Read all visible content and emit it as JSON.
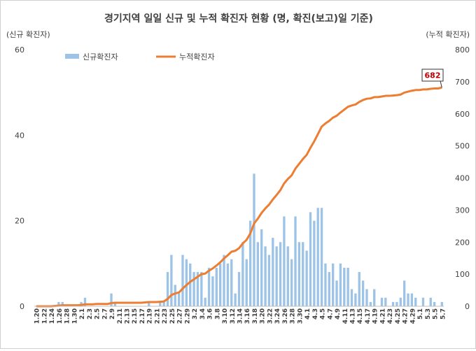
{
  "chart_data": {
    "type": "bar+line",
    "title": "경기지역 일일 신규 및 누적 확진자 현황 (명, 확진(보고)일 기준)",
    "ylabel_left": "(신규 확진자)",
    "ylabel_right": "(누적 확진자)",
    "ylim_left": [
      0,
      60
    ],
    "ylim_right": [
      0,
      800
    ],
    "yticks_left": [
      0,
      20,
      40,
      60
    ],
    "yticks_right": [
      0,
      100,
      200,
      300,
      400,
      500,
      600,
      700,
      800
    ],
    "grid": false,
    "legend_position": "top-left",
    "x": [
      "1.20",
      "1.21",
      "1.22",
      "1.23",
      "1.24",
      "1.25",
      "1.26",
      "1.27",
      "1.28",
      "1.29",
      "1.30",
      "1.31",
      "2.1",
      "2.2",
      "2.3",
      "2.4",
      "2.5",
      "2.6",
      "2.7",
      "2.8",
      "2.9",
      "2.10",
      "2.11",
      "2.12",
      "2.13",
      "2.14",
      "2.15",
      "2.16",
      "2.17",
      "2.18",
      "2.19",
      "2.20",
      "2.21",
      "2.22",
      "2.23",
      "2.24",
      "2.25",
      "2.26",
      "2.27",
      "2.28",
      "2.29",
      "3.1",
      "3.2",
      "3.3",
      "3.4",
      "3.5",
      "3.6",
      "3.7",
      "3.8",
      "3.9",
      "3.10",
      "3.11",
      "3.12",
      "3.13",
      "3.14",
      "3.15",
      "3.16",
      "3.17",
      "3.18",
      "3.19",
      "3.20",
      "3.21",
      "3.22",
      "3.23",
      "3.24",
      "3.25",
      "3.26",
      "3.27",
      "3.28",
      "3.29",
      "3.30",
      "3.31",
      "4.1",
      "4.2",
      "4.3",
      "4.4",
      "4.5",
      "4.6",
      "4.7",
      "4.8",
      "4.9",
      "4.10",
      "4.11",
      "4.12",
      "4.13",
      "4.14",
      "4.15",
      "4.16",
      "4.17",
      "4.18",
      "4.19",
      "4.20",
      "4.21",
      "4.22",
      "4.23",
      "4.24",
      "4.25",
      "4.26",
      "4.27",
      "4.28",
      "4.29",
      "4.30",
      "5.1",
      "5.2",
      "5.3",
      "5.4",
      "5.5",
      "5.6",
      "5.7"
    ],
    "xtick_labels": [
      "1.20",
      "1.22",
      "1.24",
      "1.26",
      "1.28",
      "1.30",
      "2.1",
      "2.3",
      "2.5",
      "2.7",
      "2.9",
      "2.11",
      "2.13",
      "2.15",
      "2.17",
      "2.19",
      "2.21",
      "2.23",
      "2.25",
      "2.27",
      "2.29",
      "3.2",
      "3.4",
      "3.6",
      "3.8",
      "3.10",
      "3.12",
      "3.14",
      "3.16",
      "3.18",
      "3.20",
      "3.22",
      "3.24",
      "3.26",
      "3.28",
      "3.30",
      "4.1",
      "4.3",
      "4.5",
      "4.7",
      "4.9",
      "4.11",
      "4.13",
      "4.15",
      "4.17",
      "4.19",
      "4.21",
      "4.23",
      "4.25",
      "4.27",
      "4.29",
      "5.1",
      "5.3",
      "5.5",
      "5.7"
    ],
    "series": [
      {
        "name": "신규확진자",
        "axis": "left",
        "type": "bar",
        "color": "#9dc3e6",
        "values": [
          0,
          0,
          0,
          0,
          0,
          0,
          1,
          1,
          0,
          0,
          0,
          0,
          1,
          2,
          0,
          0,
          0,
          0,
          0,
          0,
          3,
          1,
          0,
          0,
          0,
          0,
          0,
          0,
          0,
          0,
          1,
          0,
          0,
          1,
          1,
          8,
          12,
          5,
          3,
          12,
          11,
          10,
          8,
          8,
          8,
          2,
          9,
          7,
          9,
          10,
          12,
          10,
          11,
          3,
          8,
          15,
          11,
          20,
          31,
          15,
          18,
          14,
          12,
          16,
          14,
          15,
          21,
          14,
          11,
          21,
          15,
          15,
          13,
          22,
          20,
          23,
          23,
          10,
          8,
          10,
          6,
          10,
          9,
          9,
          4,
          3,
          8,
          6,
          4,
          1,
          4,
          0,
          2,
          2,
          0,
          1,
          1,
          2,
          6,
          3,
          3,
          2,
          0,
          2,
          0,
          2,
          1,
          0,
          1
        ]
      },
      {
        "name": "누적확진자",
        "axis": "right",
        "type": "line",
        "color": "#ed7d31",
        "values": [
          0,
          0,
          0,
          0,
          0,
          1,
          2,
          3,
          3,
          3,
          3,
          3,
          4,
          6,
          6,
          6,
          7,
          7,
          7,
          7,
          10,
          11,
          11,
          11,
          11,
          11,
          11,
          11,
          11,
          12,
          13,
          13,
          13,
          14,
          15,
          23,
          35,
          40,
          43,
          55,
          66,
          76,
          84,
          92,
          100,
          102,
          111,
          118,
          127,
          137,
          149,
          159,
          170,
          173,
          181,
          196,
          207,
          227,
          258,
          273,
          291,
          305,
          317,
          333,
          347,
          362,
          383,
          397,
          408,
          429,
          444,
          459,
          472,
          494,
          514,
          537,
          560,
          570,
          578,
          588,
          594,
          604,
          613,
          622,
          626,
          629,
          637,
          643,
          647,
          648,
          652,
          652,
          654,
          656,
          656,
          657,
          658,
          660,
          666,
          669,
          672,
          674,
          674,
          676,
          676,
          678,
          679,
          679,
          682
        ]
      }
    ],
    "annotations": [
      {
        "label": "682",
        "x": "5.7",
        "series": "누적확진자"
      }
    ]
  }
}
